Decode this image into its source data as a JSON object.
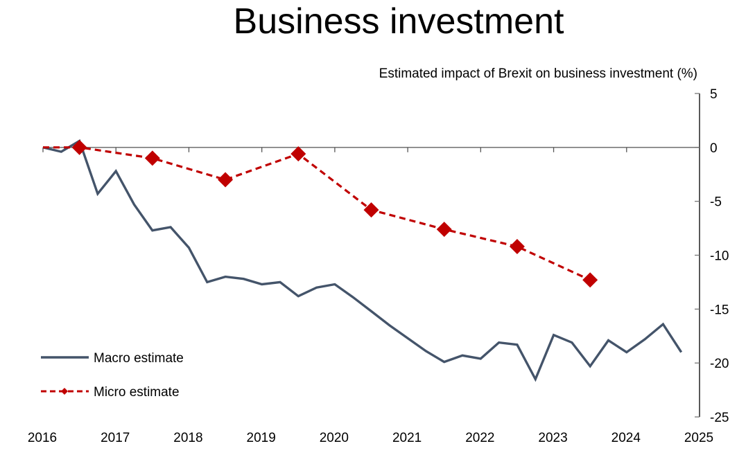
{
  "chart_data": {
    "type": "line",
    "title": "Business investment",
    "xlabel": "",
    "ylabel": "Estimated impact of Brexit on business investment (%)",
    "xlim": [
      2016,
      2025
    ],
    "ylim": [
      -25,
      5
    ],
    "x_ticks": [
      2016,
      2017,
      2018,
      2019,
      2020,
      2021,
      2022,
      2023,
      2024,
      2025
    ],
    "x_tick_labels": [
      "2016",
      "2017",
      "2018",
      "2019",
      "2020",
      "2021",
      "2022",
      "2023",
      "2024",
      "2025"
    ],
    "y_ticks": [
      5,
      0,
      -5,
      -10,
      -15,
      -20,
      -25
    ],
    "y_tick_labels": [
      "5",
      "0",
      "-5",
      "-10",
      "-15",
      "-20",
      "-25"
    ],
    "y_axis_side": "right",
    "zero_line": true,
    "grid": false,
    "legend_position": "bottom-left",
    "series": [
      {
        "name": "Macro estimate",
        "style": "solid",
        "color": "#44546A",
        "marker": "none",
        "x": [
          2016.0,
          2016.25,
          2016.5,
          2016.75,
          2017.0,
          2017.25,
          2017.5,
          2017.75,
          2018.0,
          2018.25,
          2018.5,
          2018.75,
          2019.0,
          2019.25,
          2019.5,
          2019.75,
          2020.0,
          2020.25,
          2020.5,
          2020.75,
          2021.0,
          2021.25,
          2021.5,
          2021.75,
          2022.0,
          2022.25,
          2022.5,
          2022.75,
          2023.0,
          2023.25,
          2023.5,
          2023.75,
          2024.0,
          2024.25,
          2024.5,
          2024.75
        ],
        "values": [
          0.0,
          -0.4,
          0.6,
          -4.3,
          -2.2,
          -5.3,
          -7.7,
          -7.4,
          -9.3,
          -12.5,
          -12.0,
          -12.2,
          -12.7,
          -12.5,
          -13.8,
          -13.0,
          -12.7,
          -13.9,
          -15.2,
          -16.5,
          -17.7,
          -18.9,
          -19.9,
          -19.3,
          -19.6,
          -18.1,
          -18.3,
          -21.5,
          -17.4,
          -18.1,
          -20.3,
          -17.9,
          -19.0,
          -17.8,
          -16.4,
          -19.0
        ]
      },
      {
        "name": "Micro estimate",
        "style": "dashed",
        "color": "#C00000",
        "marker": "diamond",
        "x": [
          2016.0,
          2016.5,
          2017.5,
          2018.5,
          2019.5,
          2020.5,
          2021.5,
          2022.5,
          2023.5
        ],
        "values": [
          0.0,
          0.0,
          -1.0,
          -3.0,
          -0.6,
          -5.8,
          -7.6,
          -9.2,
          -12.3
        ],
        "marker_at_first_point": false
      }
    ]
  }
}
